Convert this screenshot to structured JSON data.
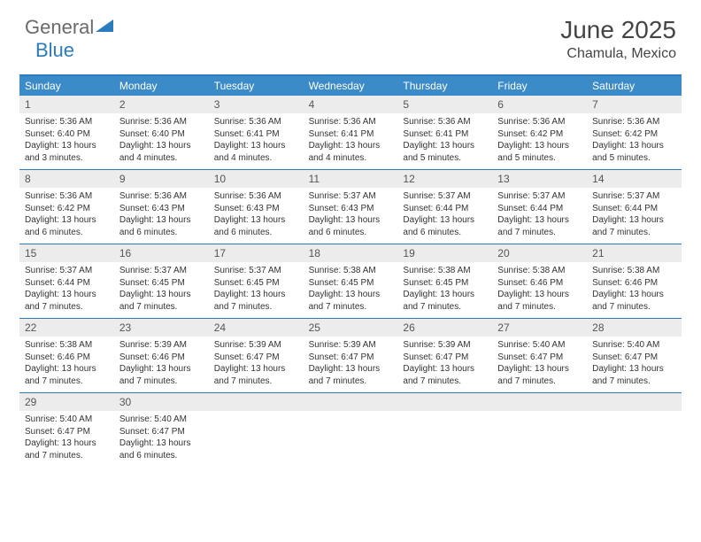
{
  "brand": {
    "general": "General",
    "blue": "Blue"
  },
  "title": "June 2025",
  "location": "Chamula, Mexico",
  "colors": {
    "header_blue": "#3b8bc9",
    "rule_blue": "#2b7bbf",
    "day_num_bg": "#ececec",
    "text_gray": "#555",
    "body_text": "#333"
  },
  "weekdays": [
    "Sunday",
    "Monday",
    "Tuesday",
    "Wednesday",
    "Thursday",
    "Friday",
    "Saturday"
  ],
  "weeks": [
    [
      {
        "n": "1",
        "sr": "Sunrise: 5:36 AM",
        "ss": "Sunset: 6:40 PM",
        "d1": "Daylight: 13 hours",
        "d2": "and 3 minutes."
      },
      {
        "n": "2",
        "sr": "Sunrise: 5:36 AM",
        "ss": "Sunset: 6:40 PM",
        "d1": "Daylight: 13 hours",
        "d2": "and 4 minutes."
      },
      {
        "n": "3",
        "sr": "Sunrise: 5:36 AM",
        "ss": "Sunset: 6:41 PM",
        "d1": "Daylight: 13 hours",
        "d2": "and 4 minutes."
      },
      {
        "n": "4",
        "sr": "Sunrise: 5:36 AM",
        "ss": "Sunset: 6:41 PM",
        "d1": "Daylight: 13 hours",
        "d2": "and 4 minutes."
      },
      {
        "n": "5",
        "sr": "Sunrise: 5:36 AM",
        "ss": "Sunset: 6:41 PM",
        "d1": "Daylight: 13 hours",
        "d2": "and 5 minutes."
      },
      {
        "n": "6",
        "sr": "Sunrise: 5:36 AM",
        "ss": "Sunset: 6:42 PM",
        "d1": "Daylight: 13 hours",
        "d2": "and 5 minutes."
      },
      {
        "n": "7",
        "sr": "Sunrise: 5:36 AM",
        "ss": "Sunset: 6:42 PM",
        "d1": "Daylight: 13 hours",
        "d2": "and 5 minutes."
      }
    ],
    [
      {
        "n": "8",
        "sr": "Sunrise: 5:36 AM",
        "ss": "Sunset: 6:42 PM",
        "d1": "Daylight: 13 hours",
        "d2": "and 6 minutes."
      },
      {
        "n": "9",
        "sr": "Sunrise: 5:36 AM",
        "ss": "Sunset: 6:43 PM",
        "d1": "Daylight: 13 hours",
        "d2": "and 6 minutes."
      },
      {
        "n": "10",
        "sr": "Sunrise: 5:36 AM",
        "ss": "Sunset: 6:43 PM",
        "d1": "Daylight: 13 hours",
        "d2": "and 6 minutes."
      },
      {
        "n": "11",
        "sr": "Sunrise: 5:37 AM",
        "ss": "Sunset: 6:43 PM",
        "d1": "Daylight: 13 hours",
        "d2": "and 6 minutes."
      },
      {
        "n": "12",
        "sr": "Sunrise: 5:37 AM",
        "ss": "Sunset: 6:44 PM",
        "d1": "Daylight: 13 hours",
        "d2": "and 6 minutes."
      },
      {
        "n": "13",
        "sr": "Sunrise: 5:37 AM",
        "ss": "Sunset: 6:44 PM",
        "d1": "Daylight: 13 hours",
        "d2": "and 7 minutes."
      },
      {
        "n": "14",
        "sr": "Sunrise: 5:37 AM",
        "ss": "Sunset: 6:44 PM",
        "d1": "Daylight: 13 hours",
        "d2": "and 7 minutes."
      }
    ],
    [
      {
        "n": "15",
        "sr": "Sunrise: 5:37 AM",
        "ss": "Sunset: 6:44 PM",
        "d1": "Daylight: 13 hours",
        "d2": "and 7 minutes."
      },
      {
        "n": "16",
        "sr": "Sunrise: 5:37 AM",
        "ss": "Sunset: 6:45 PM",
        "d1": "Daylight: 13 hours",
        "d2": "and 7 minutes."
      },
      {
        "n": "17",
        "sr": "Sunrise: 5:37 AM",
        "ss": "Sunset: 6:45 PM",
        "d1": "Daylight: 13 hours",
        "d2": "and 7 minutes."
      },
      {
        "n": "18",
        "sr": "Sunrise: 5:38 AM",
        "ss": "Sunset: 6:45 PM",
        "d1": "Daylight: 13 hours",
        "d2": "and 7 minutes."
      },
      {
        "n": "19",
        "sr": "Sunrise: 5:38 AM",
        "ss": "Sunset: 6:45 PM",
        "d1": "Daylight: 13 hours",
        "d2": "and 7 minutes."
      },
      {
        "n": "20",
        "sr": "Sunrise: 5:38 AM",
        "ss": "Sunset: 6:46 PM",
        "d1": "Daylight: 13 hours",
        "d2": "and 7 minutes."
      },
      {
        "n": "21",
        "sr": "Sunrise: 5:38 AM",
        "ss": "Sunset: 6:46 PM",
        "d1": "Daylight: 13 hours",
        "d2": "and 7 minutes."
      }
    ],
    [
      {
        "n": "22",
        "sr": "Sunrise: 5:38 AM",
        "ss": "Sunset: 6:46 PM",
        "d1": "Daylight: 13 hours",
        "d2": "and 7 minutes."
      },
      {
        "n": "23",
        "sr": "Sunrise: 5:39 AM",
        "ss": "Sunset: 6:46 PM",
        "d1": "Daylight: 13 hours",
        "d2": "and 7 minutes."
      },
      {
        "n": "24",
        "sr": "Sunrise: 5:39 AM",
        "ss": "Sunset: 6:47 PM",
        "d1": "Daylight: 13 hours",
        "d2": "and 7 minutes."
      },
      {
        "n": "25",
        "sr": "Sunrise: 5:39 AM",
        "ss": "Sunset: 6:47 PM",
        "d1": "Daylight: 13 hours",
        "d2": "and 7 minutes."
      },
      {
        "n": "26",
        "sr": "Sunrise: 5:39 AM",
        "ss": "Sunset: 6:47 PM",
        "d1": "Daylight: 13 hours",
        "d2": "and 7 minutes."
      },
      {
        "n": "27",
        "sr": "Sunrise: 5:40 AM",
        "ss": "Sunset: 6:47 PM",
        "d1": "Daylight: 13 hours",
        "d2": "and 7 minutes."
      },
      {
        "n": "28",
        "sr": "Sunrise: 5:40 AM",
        "ss": "Sunset: 6:47 PM",
        "d1": "Daylight: 13 hours",
        "d2": "and 7 minutes."
      }
    ],
    [
      {
        "n": "29",
        "sr": "Sunrise: 5:40 AM",
        "ss": "Sunset: 6:47 PM",
        "d1": "Daylight: 13 hours",
        "d2": "and 7 minutes."
      },
      {
        "n": "30",
        "sr": "Sunrise: 5:40 AM",
        "ss": "Sunset: 6:47 PM",
        "d1": "Daylight: 13 hours",
        "d2": "and 6 minutes."
      },
      null,
      null,
      null,
      null,
      null
    ]
  ]
}
